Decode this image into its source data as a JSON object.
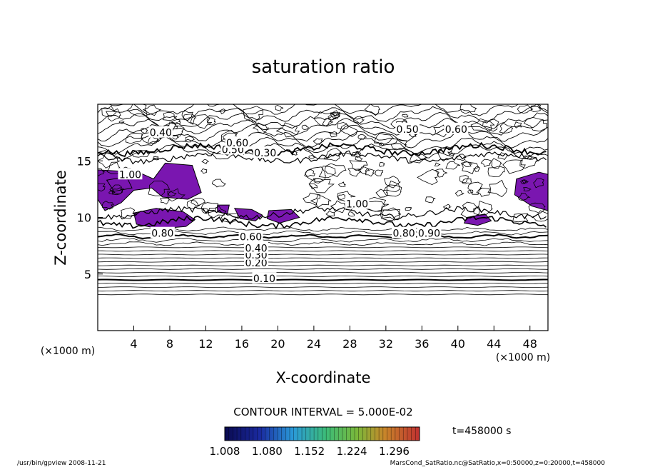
{
  "chart_data": {
    "type": "contour",
    "title": "saturation ratio",
    "xlabel": "X-coordinate",
    "ylabel": "Z-coordinate",
    "x_unit_label": "(×1000 m)",
    "y_unit_label": "(×1000 m)",
    "xlim": [
      0,
      50
    ],
    "ylim": [
      0,
      20
    ],
    "x_ticks": [
      4,
      8,
      12,
      16,
      20,
      24,
      28,
      32,
      36,
      40,
      44,
      48
    ],
    "y_ticks": [
      5,
      10,
      15
    ],
    "contour_interval_text": "CONTOUR INTERVAL = 5.000E-02",
    "contour_interval": 0.05,
    "contour_labels": [
      {
        "text": "0.10",
        "x": 18.5,
        "y": 4.6
      },
      {
        "text": "0.20",
        "x": 17.6,
        "y": 6.0
      },
      {
        "text": "0.30",
        "x": 17.6,
        "y": 6.7
      },
      {
        "text": "0.40",
        "x": 17.6,
        "y": 7.3
      },
      {
        "text": "0.60",
        "x": 17.0,
        "y": 8.3
      },
      {
        "text": "0.80",
        "x": 7.2,
        "y": 8.6
      },
      {
        "text": "0.80",
        "x": 34.0,
        "y": 8.6
      },
      {
        "text": "0.90",
        "x": 36.8,
        "y": 8.6
      },
      {
        "text": "0.40",
        "x": 7.0,
        "y": 17.5
      },
      {
        "text": "0.50",
        "x": 15.0,
        "y": 16.0
      },
      {
        "text": "0.60",
        "x": 15.5,
        "y": 16.6
      },
      {
        "text": "0.30",
        "x": 18.6,
        "y": 15.7
      },
      {
        "text": "0.50",
        "x": 34.4,
        "y": 17.8
      },
      {
        "text": "0.60",
        "x": 39.8,
        "y": 17.8
      },
      {
        "text": "1.00",
        "x": 3.6,
        "y": 13.8
      },
      {
        "text": "1.00",
        "x": 28.8,
        "y": 11.2
      }
    ],
    "shaded_regions_note": "saturation ratio > 1.0 shaded",
    "colorbar": {
      "ticks": [
        "1.008",
        "1.080",
        "1.152",
        "1.224",
        "1.296"
      ],
      "min": 1.008,
      "max": 1.296
    },
    "time_label": "t=458000 s",
    "footer_left": "/usr/bin/gpview   2008-11-21",
    "footer_right": "MarsCond_SatRatio.nc@SatRatio,x=0:50000,z=0:20000,t=458000"
  }
}
